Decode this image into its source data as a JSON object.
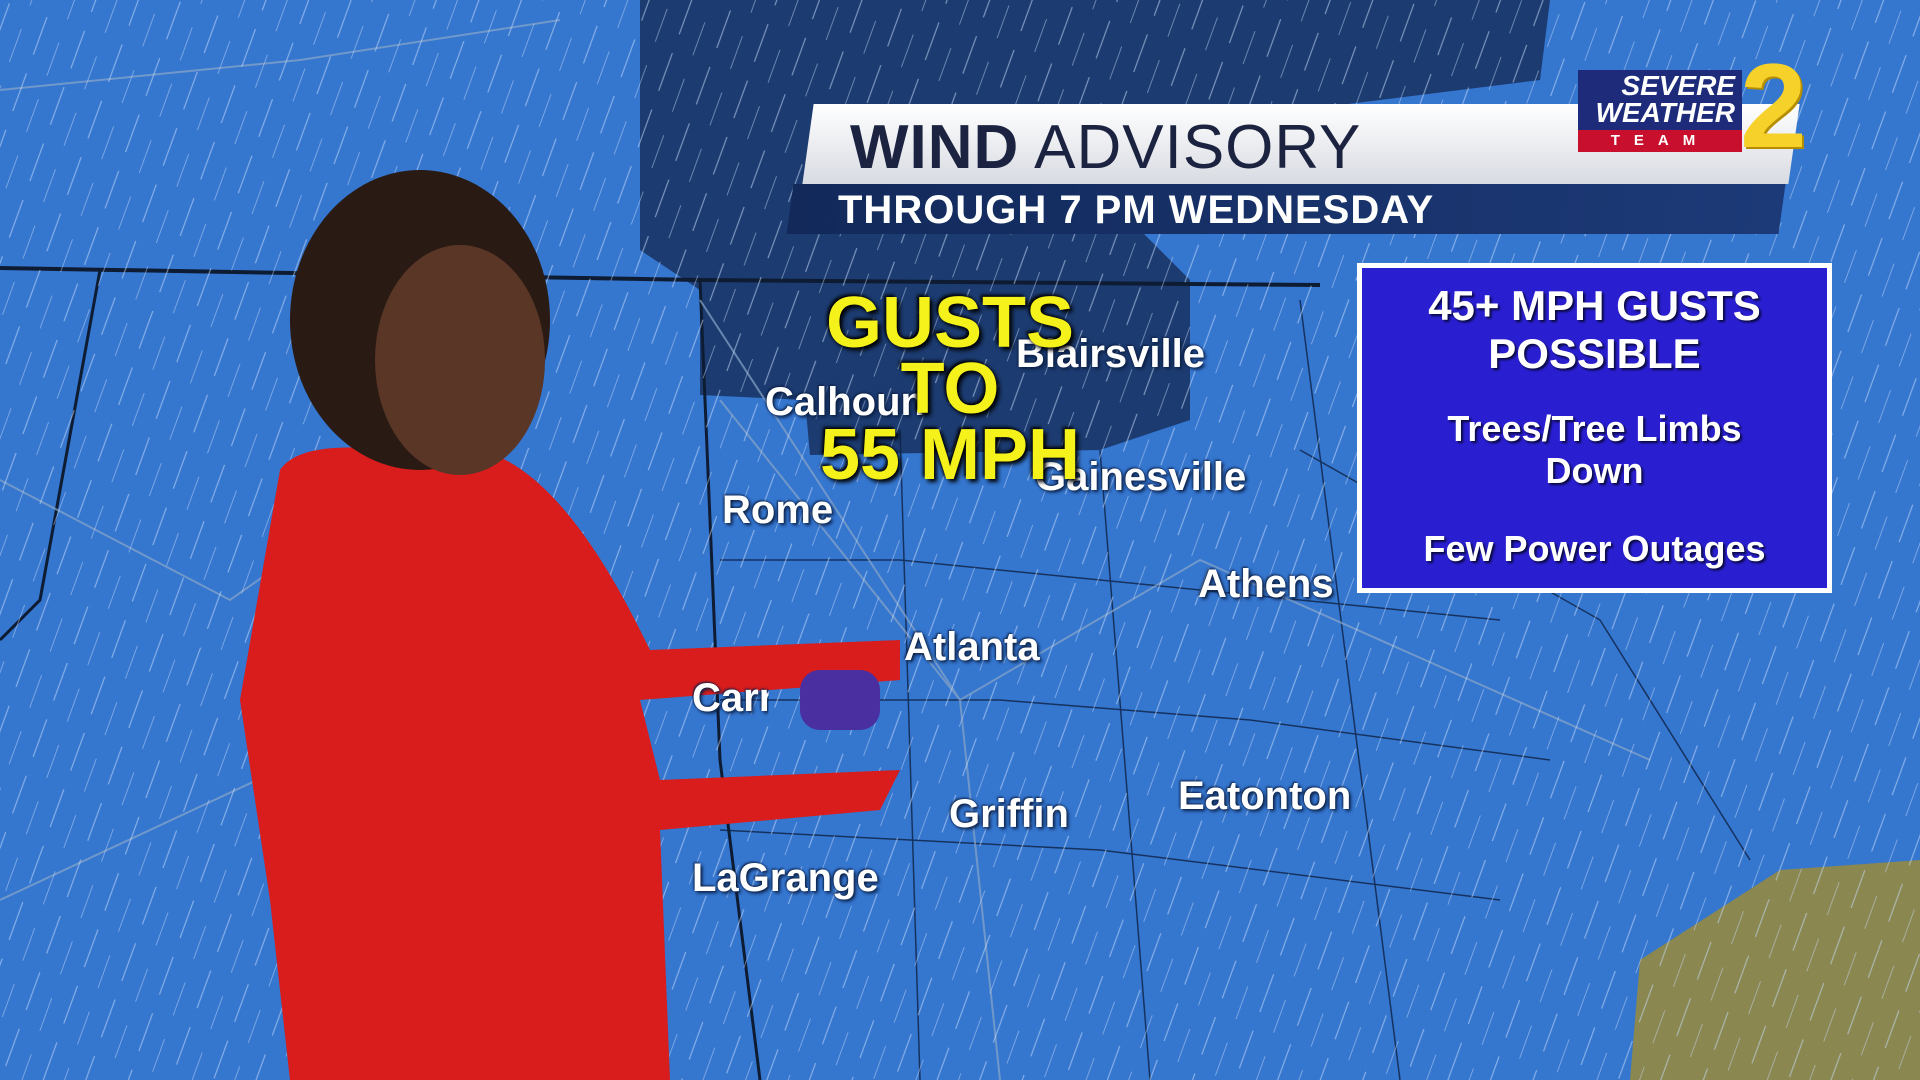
{
  "banner": {
    "title_bold": "WIND",
    "title_light": "ADVISORY",
    "subtitle": "THROUGH 7 PM WEDNESDAY"
  },
  "logo": {
    "line1": "SEVERE",
    "line2": "WEATHER",
    "team": "TEAM",
    "number": "2"
  },
  "gusts": {
    "line1": "GUSTS TO",
    "line2": "55 MPH"
  },
  "infobox": {
    "heading_line1": "45+ MPH GUSTS",
    "heading_line2": "POSSIBLE",
    "impact1_line1": "Trees/Tree Limbs",
    "impact1_line2": "Down",
    "impact2": "Few Power Outages"
  },
  "cities": {
    "blairsville": "Blairsville",
    "calhoun": "Calhoun",
    "rome": "Rome",
    "gainesville": "Gainesville",
    "athens": "Athens",
    "atlanta": "Atlanta",
    "carrollton": "Carrollton",
    "griffin": "Griffin",
    "eatonton": "Eatonton",
    "lagrange": "LaGrange"
  },
  "colors": {
    "map_blue": "#3576cf",
    "advisory_dark": "#1c3b70",
    "info_box": "#2a1fd0",
    "gust_yellow": "#f4f21a",
    "dress_red": "#d91c1c",
    "land_olive": "#8a8750"
  }
}
